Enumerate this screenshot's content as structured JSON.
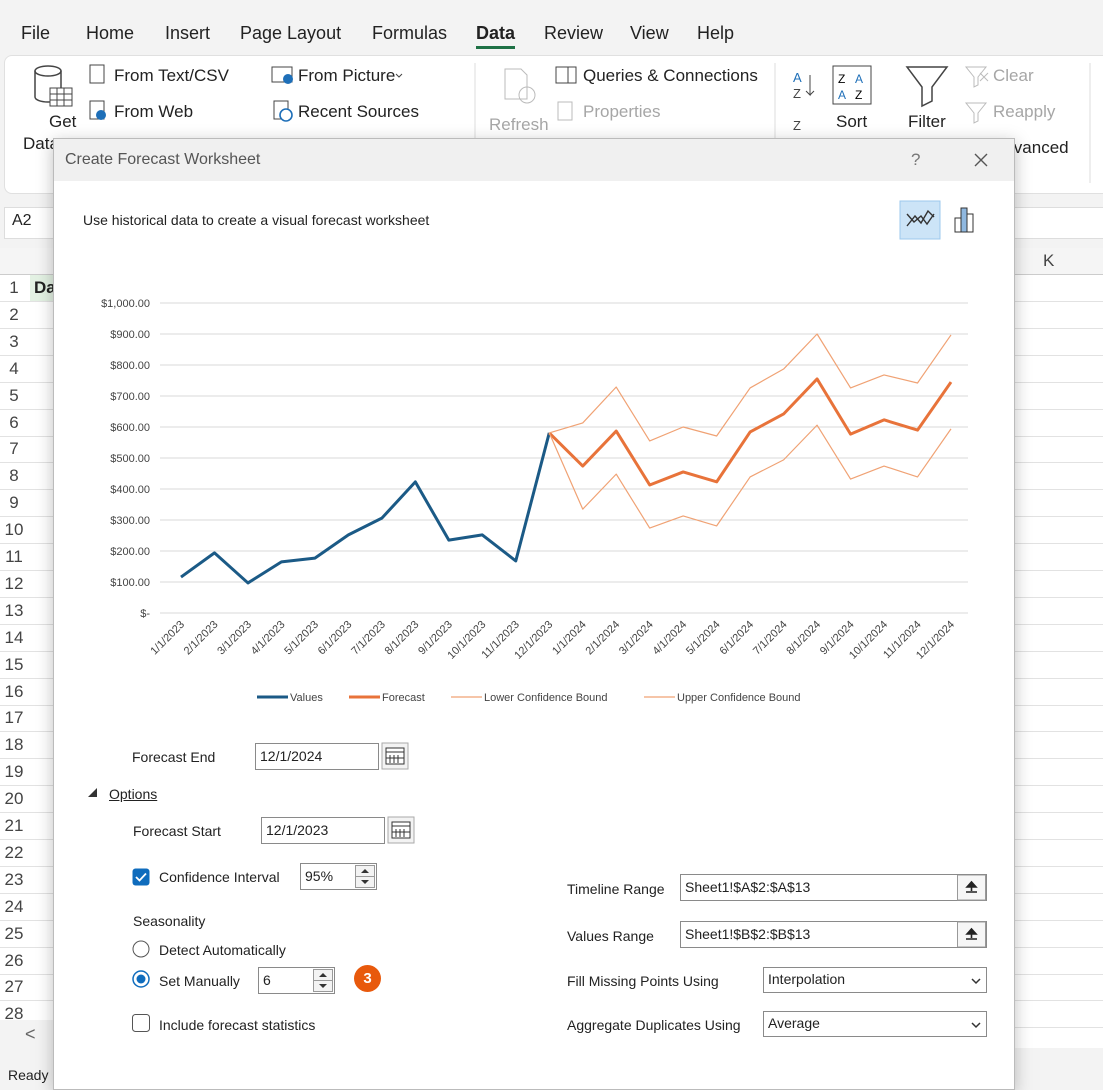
{
  "ribbon": {
    "tabs": [
      "File",
      "Home",
      "Insert",
      "Page Layout",
      "Formulas",
      "Data",
      "Review",
      "View",
      "Help"
    ],
    "get_data": [
      "Get",
      "Data"
    ],
    "from_text": "From Text/CSV",
    "from_web": "From Web",
    "from_picture": "From Picture",
    "recent_sources": "Recent Sources",
    "refresh": "Refresh",
    "queries": "Queries & Connections",
    "properties": "Properties",
    "sort": "Sort",
    "filter": "Filter",
    "clear": "Clear",
    "reapply": "Reapply",
    "advanced": "Advanced"
  },
  "sheet": {
    "name_box": "A2",
    "column": "K",
    "rows": [
      1,
      2,
      3,
      4,
      5,
      6,
      7,
      8,
      9,
      10,
      11,
      12,
      13,
      14,
      15,
      16,
      17,
      18,
      19,
      20,
      21,
      22,
      23,
      24,
      25,
      26,
      27,
      28
    ],
    "cell_a1": "Da",
    "status": "Ready"
  },
  "dialog": {
    "title": "Create Forecast Worksheet",
    "help": "?",
    "description": "Use historical data to create a visual forecast worksheet",
    "chart_data": {
      "type": "line",
      "categories": [
        "1/1/2023",
        "2/1/2023",
        "3/1/2023",
        "4/1/2023",
        "5/1/2023",
        "6/1/2023",
        "7/1/2023",
        "8/1/2023",
        "9/1/2023",
        "10/1/2023",
        "11/1/2023",
        "12/1/2023",
        "1/1/2024",
        "2/1/2024",
        "3/1/2024",
        "4/1/2024",
        "5/1/2024",
        "6/1/2024",
        "7/1/2024",
        "8/1/2024",
        "9/1/2024",
        "10/1/2024",
        "11/1/2024",
        "12/1/2024"
      ],
      "series": [
        {
          "name": "Values",
          "color": "#1b5a86",
          "values": [
            116,
            194,
            97,
            165,
            177,
            252,
            306,
            423,
            235,
            252,
            168,
            581,
            null,
            null,
            null,
            null,
            null,
            null,
            null,
            null,
            null,
            null,
            null,
            null
          ]
        },
        {
          "name": "Forecast",
          "color": "#e8733a",
          "values": [
            null,
            null,
            null,
            null,
            null,
            null,
            null,
            null,
            null,
            null,
            null,
            581,
            474,
            587,
            413,
            455,
            423,
            584,
            642,
            755,
            577,
            623,
            590,
            745
          ]
        },
        {
          "name": "Lower Confidence Bound",
          "color": "#f0a274",
          "values": [
            null,
            null,
            null,
            null,
            null,
            null,
            null,
            null,
            null,
            null,
            null,
            581,
            335,
            448,
            274,
            313,
            281,
            439,
            494,
            606,
            432,
            474,
            439,
            594
          ]
        },
        {
          "name": "Upper Confidence Bound",
          "color": "#f0a274",
          "values": [
            null,
            null,
            null,
            null,
            null,
            null,
            null,
            null,
            null,
            null,
            null,
            581,
            613,
            729,
            555,
            600,
            571,
            726,
            787,
            900,
            726,
            768,
            742,
            897
          ]
        }
      ],
      "ylim": [
        0,
        1000
      ],
      "yticks": [
        {
          "value": 0,
          "label": "$-"
        },
        {
          "value": 100,
          "label": "$100.00"
        },
        {
          "value": 200,
          "label": "$200.00"
        },
        {
          "value": 300,
          "label": "$300.00"
        },
        {
          "value": 400,
          "label": "$400.00"
        },
        {
          "value": 500,
          "label": "$500.00"
        },
        {
          "value": 600,
          "label": "$600.00"
        },
        {
          "value": 700,
          "label": "$700.00"
        },
        {
          "value": 800,
          "label": "$800.00"
        },
        {
          "value": 900,
          "label": "$900.00"
        },
        {
          "value": 1000,
          "label": "$1,000.00"
        }
      ],
      "grid": true,
      "legend": "bottom"
    },
    "forecast_end": {
      "label": "Forecast End",
      "value": "12/1/2024"
    },
    "options": "Options",
    "forecast_start": {
      "label": "Forecast Start",
      "value": "12/1/2023"
    },
    "confidence": {
      "label": "Confidence Interval",
      "value": "95%"
    },
    "seasonality": "Seasonality",
    "detect": "Detect Automatically",
    "set_manually": {
      "label": "Set Manually",
      "value": "6"
    },
    "badge": "3",
    "include_stats": "Include forecast statistics",
    "timeline_range": {
      "label": "Timeline Range",
      "value": "Sheet1!$A$2:$A$13"
    },
    "values_range": {
      "label": "Values Range",
      "value": "Sheet1!$B$2:$B$13"
    },
    "fill_missing": {
      "label": "Fill Missing Points Using",
      "value": "Interpolation"
    },
    "aggregate": {
      "label": "Aggregate Duplicates Using",
      "value": "Average"
    }
  }
}
